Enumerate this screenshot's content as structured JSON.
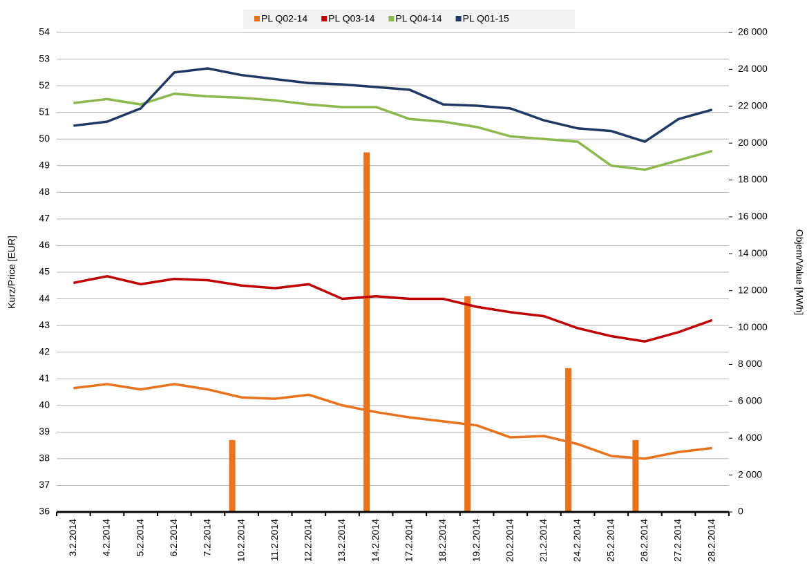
{
  "chart_data": {
    "type": "line",
    "y_label": "Kurz/Price [EUR]",
    "y2_label": "Objem/Value [MWh]",
    "categories": [
      "3.2.2014",
      "4.2.2014",
      "5.2.2014",
      "6.2.2014",
      "7.2.2014",
      "10.2.2014",
      "11.2.2014",
      "12.2.2014",
      "13.2.2014",
      "14.2.2014",
      "17.2.2014",
      "18.2.2014",
      "19.2.2014",
      "20.2.2014",
      "21.2.2014",
      "24.2.2014",
      "25.2.2014",
      "26.2.2014",
      "27.2.2014",
      "28.2.2014"
    ],
    "series": [
      {
        "name": "PL Q02-14",
        "color": "#e8731c",
        "values": [
          40.65,
          40.8,
          40.6,
          40.8,
          40.6,
          40.3,
          40.25,
          40.4,
          40.0,
          39.75,
          39.55,
          39.4,
          39.25,
          38.8,
          38.85,
          38.55,
          38.1,
          38.0,
          38.25,
          38.4
        ],
        "volumes": [
          null,
          null,
          null,
          null,
          null,
          3900,
          null,
          null,
          null,
          19500,
          null,
          null,
          11700,
          null,
          null,
          7800,
          null,
          3900,
          null,
          null
        ]
      },
      {
        "name": "PL Q03-14",
        "color": "#c00000",
        "values": [
          44.6,
          44.85,
          44.55,
          44.75,
          44.7,
          44.5,
          44.4,
          44.55,
          44.0,
          44.1,
          44.0,
          44.0,
          43.7,
          43.5,
          43.35,
          42.9,
          42.6,
          42.4,
          42.75,
          43.2
        ]
      },
      {
        "name": "PL Q04-14",
        "color": "#8cb84e",
        "values": [
          51.35,
          51.5,
          51.3,
          51.7,
          51.6,
          51.55,
          51.45,
          51.3,
          51.2,
          51.2,
          50.75,
          50.65,
          50.45,
          50.1,
          50.0,
          49.9,
          49.0,
          48.85,
          49.2,
          49.55
        ]
      },
      {
        "name": "PL Q01-15",
        "color": "#1f3864",
        "values": [
          50.5,
          50.65,
          51.15,
          52.5,
          52.65,
          52.4,
          52.25,
          52.1,
          52.05,
          51.95,
          51.85,
          51.3,
          51.25,
          51.15,
          50.7,
          50.4,
          50.3,
          49.9,
          50.75,
          51.1
        ]
      }
    ],
    "ylim": [
      36,
      54
    ],
    "yticks": [
      36,
      37,
      38,
      39,
      40,
      41,
      42,
      43,
      44,
      45,
      46,
      47,
      48,
      49,
      50,
      51,
      52,
      53,
      54
    ],
    "y2lim": [
      0,
      26000
    ],
    "y2ticks": [
      0,
      {
        "value": 2000,
        "label": "2 000"
      },
      {
        "value": 4000,
        "label": "4 000"
      },
      {
        "value": 6000,
        "label": "6 000"
      },
      {
        "value": 8000,
        "label": "8 000"
      },
      {
        "value": 10000,
        "label": "10 000"
      },
      {
        "value": 12000,
        "label": "12 000"
      },
      {
        "value": 14000,
        "label": "14 000"
      },
      {
        "value": 16000,
        "label": "16 000"
      },
      {
        "value": 18000,
        "label": "18 000"
      },
      {
        "value": 20000,
        "label": "20 000"
      },
      {
        "value": 22000,
        "label": "22 000"
      },
      {
        "value": 24000,
        "label": "24 000"
      },
      {
        "value": 26000,
        "label": "26 000"
      }
    ],
    "grid": true,
    "legend": "top"
  }
}
